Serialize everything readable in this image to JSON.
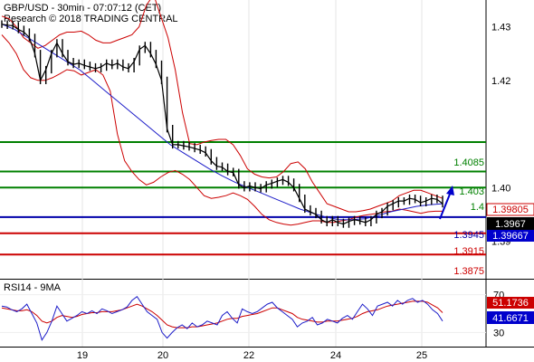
{
  "header": {
    "title": "GBP/USD - 30min - 07:07:12 (CET)",
    "copyright": "Research © 2018 TRADING CENTRAL"
  },
  "colors": {
    "price": "#000000",
    "bollinger": "#cc0000",
    "moving_average": "#1c1cc8",
    "resistance": "#008000",
    "pivot": "#0000aa",
    "support": "#cc0000",
    "arrow": "#0000cc",
    "rsi": "#1c1cc8",
    "rsi_ma": "#cc0000",
    "current_price_bg": "#000000",
    "ma_value_bg": "#0000cc",
    "rsi_value_bg": "#0000cc",
    "rsi_ma_value_bg": "#cc0000"
  },
  "chart_data": [
    {
      "type": "line",
      "panel": "price",
      "ylim": [
        1.383,
        1.435
      ],
      "x_tick_labels": [
        "19",
        "20",
        "22",
        "24",
        "25"
      ],
      "y_tick_labels": [
        "1.43",
        "1.42",
        "1.40",
        "1.39"
      ],
      "y_ticks": [
        1.43,
        1.42,
        1.4,
        1.39
      ],
      "levels": [
        {
          "label": "1.4085",
          "value": 1.4085,
          "kind": "resistance"
        },
        {
          "label": "1.403",
          "value": 1.403,
          "kind": "resistance"
        },
        {
          "label": "1.4",
          "value": 1.4,
          "kind": "resistance"
        },
        {
          "label": "1.3945",
          "value": 1.3945,
          "kind": "pivot"
        },
        {
          "label": "1.3915",
          "value": 1.3915,
          "kind": "support"
        },
        {
          "label": "1.3875",
          "value": 1.3875,
          "kind": "support"
        }
      ],
      "last_values": {
        "bollinger_upper": "1.39805",
        "close": "1.3967",
        "moving_average": "1.39667"
      },
      "price": [
        1.4305,
        1.4303,
        1.4302,
        1.4295,
        1.429,
        1.428,
        1.425,
        1.42,
        1.422,
        1.425,
        1.427,
        1.425,
        1.4235,
        1.423,
        1.4232,
        1.4228,
        1.4225,
        1.4222,
        1.4225,
        1.4232,
        1.4228,
        1.4232,
        1.4225,
        1.4222,
        1.4235,
        1.4258,
        1.4265,
        1.425,
        1.423,
        1.42,
        1.411,
        1.408,
        1.408,
        1.4078,
        1.4076,
        1.4073,
        1.407,
        1.4065,
        1.405,
        1.404,
        1.4038,
        1.403,
        1.4028,
        1.4005,
        1.4,
        1.4003,
        1.4,
        1.3998,
        1.4005,
        1.4008,
        1.4012,
        1.4015,
        1.401,
        1.4,
        1.398,
        1.396,
        1.3955,
        1.395,
        1.394,
        1.3935,
        1.394,
        1.3935,
        1.3932,
        1.3937,
        1.394,
        1.3938,
        1.3935,
        1.394,
        1.395,
        1.3955,
        1.3965,
        1.397,
        1.3975,
        1.3975,
        1.398,
        1.3978,
        1.3972,
        1.3975,
        1.398,
        1.3978,
        1.397
      ],
      "bollinger_upper": [
        1.432,
        1.4315,
        1.43,
        1.428,
        1.427,
        1.426,
        1.4265,
        1.4275,
        1.4285,
        1.429,
        1.429,
        1.4292,
        1.4285,
        1.4275,
        1.427,
        1.427,
        1.4275,
        1.428,
        1.4285,
        1.43,
        1.434,
        1.436,
        1.432,
        1.428,
        1.422,
        1.414,
        1.4082,
        1.408,
        1.4085,
        1.4088,
        1.409,
        1.409,
        1.408,
        1.406,
        1.4035,
        1.4025,
        1.402,
        1.4018,
        1.402,
        1.403,
        1.4045,
        1.4048,
        1.4035,
        1.401,
        1.399,
        1.397,
        1.3965,
        1.396,
        1.3955,
        1.3955,
        1.3957,
        1.396,
        1.3965,
        1.397,
        1.3975,
        1.3985,
        1.399,
        1.3995,
        1.3995,
        1.399,
        1.3985,
        1.398
      ],
      "bollinger_lower": [
        1.4285,
        1.427,
        1.425,
        1.422,
        1.4205,
        1.42,
        1.42,
        1.4205,
        1.4212,
        1.422,
        1.4218,
        1.421,
        1.4215,
        1.422,
        1.421,
        1.418,
        1.41,
        1.405,
        1.403,
        1.4015,
        1.4005,
        1.401,
        1.402,
        1.4028,
        1.4032,
        1.4025,
        1.4015,
        1.4,
        1.3985,
        1.398,
        1.3982,
        1.3985,
        1.399,
        1.3985,
        1.3978,
        1.3965,
        1.395,
        1.394,
        1.3935,
        1.3932,
        1.393,
        1.3932,
        1.3935,
        1.3938,
        1.3938,
        1.3935,
        1.3935,
        1.3938,
        1.394,
        1.3945,
        1.3948,
        1.395,
        1.3952,
        1.3955,
        1.3956,
        1.396,
        1.3958,
        1.3955,
        1.3952,
        1.3955,
        1.3956,
        1.3956
      ],
      "moving_average": [
        1.4305,
        1.4295,
        1.428,
        1.4265,
        1.425,
        1.4235,
        1.422,
        1.42,
        1.418,
        1.416,
        1.414,
        1.412,
        1.41,
        1.408,
        1.4065,
        1.405,
        1.4035,
        1.4022,
        1.401,
        1.4,
        1.399,
        1.398,
        1.397,
        1.396,
        1.3952,
        1.3945,
        1.394,
        1.394,
        1.3942,
        1.3948,
        1.3955,
        1.396,
        1.3965,
        1.3968,
        1.397
      ]
    },
    {
      "type": "line",
      "panel": "indicator",
      "title": "RSI14 - 9MA",
      "ylim": [
        15,
        85
      ],
      "y_tick_labels": [
        "70",
        "30"
      ],
      "y_ticks": [
        70,
        30
      ],
      "last_values": {
        "rsi_ma": "51.1736",
        "rsi": "41.6671"
      },
      "series": [
        {
          "values": [
            58,
            57,
            54,
            52,
            55,
            60,
            50,
            40,
            22,
            30,
            42,
            58,
            50,
            42,
            45,
            48,
            52,
            50,
            53,
            50,
            55,
            53,
            50,
            52,
            54,
            57,
            64,
            68,
            60,
            52,
            48,
            44,
            30,
            24,
            30,
            35,
            38,
            34,
            40,
            36,
            38,
            42,
            40,
            38,
            48,
            52,
            45,
            40,
            55,
            52,
            50,
            52,
            56,
            60,
            62,
            56,
            52,
            48,
            44,
            36,
            40,
            42,
            46,
            38,
            40,
            44,
            42,
            40,
            45,
            48,
            44,
            52,
            60,
            55,
            48,
            58,
            60,
            62,
            58,
            64,
            60,
            64,
            66,
            62,
            64,
            60,
            54,
            50,
            42
          ]
        },
        {
          "values": [
            56,
            55,
            54,
            53,
            53,
            54,
            52,
            48,
            42,
            40,
            42,
            46,
            48,
            47,
            46,
            47,
            49,
            50,
            51,
            51,
            52,
            52,
            52,
            53,
            54,
            56,
            58,
            60,
            58,
            55,
            52,
            48,
            43,
            38,
            36,
            35,
            35,
            35,
            36,
            36,
            37,
            38,
            39,
            40,
            42,
            44,
            45,
            45,
            47,
            48,
            49,
            50,
            52,
            54,
            56,
            56,
            54,
            52,
            50,
            46,
            44,
            43,
            42,
            41,
            41,
            42,
            42,
            42,
            43,
            44,
            45,
            47,
            50,
            52,
            53,
            54,
            56,
            58,
            59,
            60,
            61,
            62,
            63,
            63,
            63,
            62,
            59,
            56,
            51
          ]
        }
      ]
    }
  ]
}
